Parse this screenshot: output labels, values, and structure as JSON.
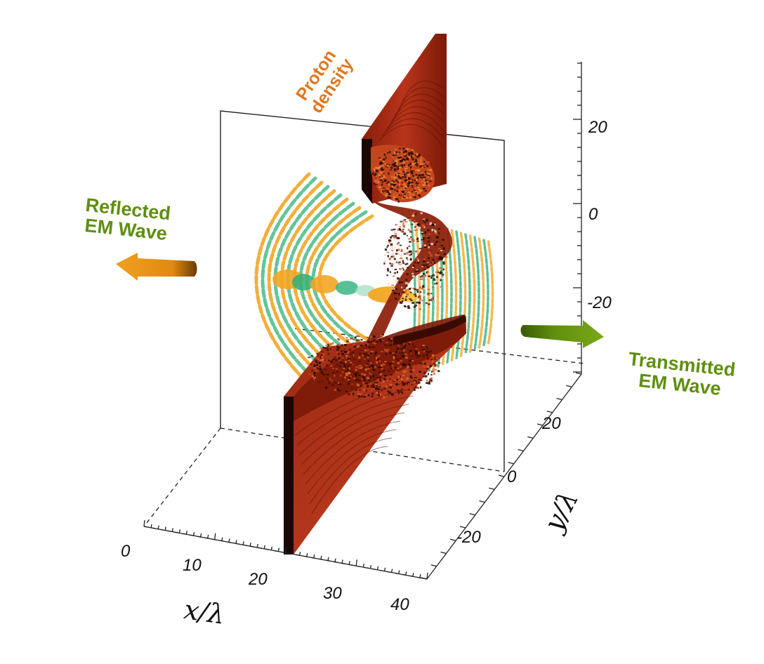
{
  "labels": {
    "reflected": [
      "Reflected",
      "EM Wave"
    ],
    "transmitted": [
      "Transmitted",
      "EM Wave"
    ],
    "proton": [
      "Proton",
      "density"
    ]
  },
  "axes": {
    "x": {
      "title": "x/λ",
      "ticks": [
        "0",
        "10",
        "20",
        "30",
        "40"
      ]
    },
    "y": {
      "title": "y/λ",
      "ticks": [
        "-20",
        "0",
        "20"
      ]
    },
    "z": {
      "ticks": [
        "20",
        "0",
        "-20"
      ]
    }
  },
  "colors": {
    "label_green": "#5f8f0e",
    "label_orange": "#e07820",
    "wave_orange": "#f2a623",
    "wave_green": "#2fb07a",
    "density_dark": "#7a1a08",
    "density_mid": "#b8341a"
  },
  "icons": {
    "reflected_arrow": "arrow-left-icon",
    "transmitted_arrow": "arrow-right-icon"
  }
}
